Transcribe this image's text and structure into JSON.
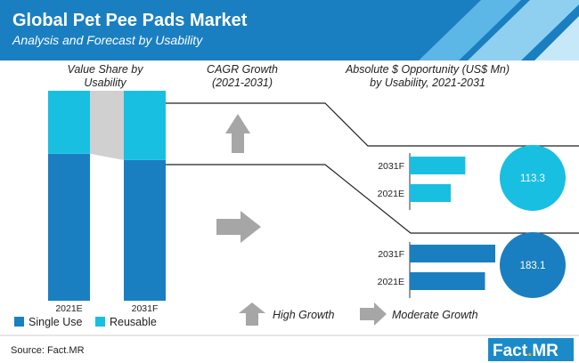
{
  "header": {
    "title": "Global Pet Pee Pads Market",
    "subtitle": "Analysis and Forecast by Usability"
  },
  "sections": {
    "value_share": [
      "Value Share by",
      "Usability"
    ],
    "cagr": [
      "CAGR Growth",
      "(2021-2031)"
    ],
    "opportunity": [
      "Absolute $ Opportunity (US$ Mn)",
      "by Usability, 2021-2031"
    ]
  },
  "legend": {
    "growth_high": "High Growth",
    "growth_moderate": "Moderate Growth"
  },
  "colors": {
    "header_bg": "#1a7fc1",
    "single_use": "#1a7fc1",
    "reusable": "#19bfe1",
    "connector": "#d0d0d0",
    "arrow": "#a6a6a6",
    "logo_bg": "#1a8bc8",
    "logo_accent": "#f3a321"
  },
  "icons": {
    "cagr_reusable": "arrow-up-icon",
    "cagr_single_use": "arrow-right-icon",
    "high_growth": "arrow-up-icon",
    "moderate_growth": "arrow-right-icon"
  },
  "chart_data": [
    {
      "type": "bar",
      "stacked": true,
      "categories": [
        "2021E",
        "2031F"
      ],
      "series": [
        {
          "name": "Single Use",
          "values": [
            70,
            67
          ]
        },
        {
          "name": "Reusable",
          "values": [
            30,
            33
          ]
        }
      ],
      "ylim": [
        0,
        100
      ]
    },
    {
      "type": "bar",
      "orientation": "horizontal",
      "categories": [
        "2031F",
        "2021E"
      ],
      "values": [
        65,
        48
      ],
      "total_label": "113.3",
      "series_ref": "Reusable"
    },
    {
      "type": "bar",
      "orientation": "horizontal",
      "categories": [
        "2031F",
        "2021E"
      ],
      "values": [
        100,
        88
      ],
      "total_label": "183.1",
      "series_ref": "Single Use"
    }
  ],
  "source": {
    "text": "Source: Fact.MR",
    "logo_main": "Fact",
    "logo_dot": ".",
    "logo_end": "MR"
  }
}
